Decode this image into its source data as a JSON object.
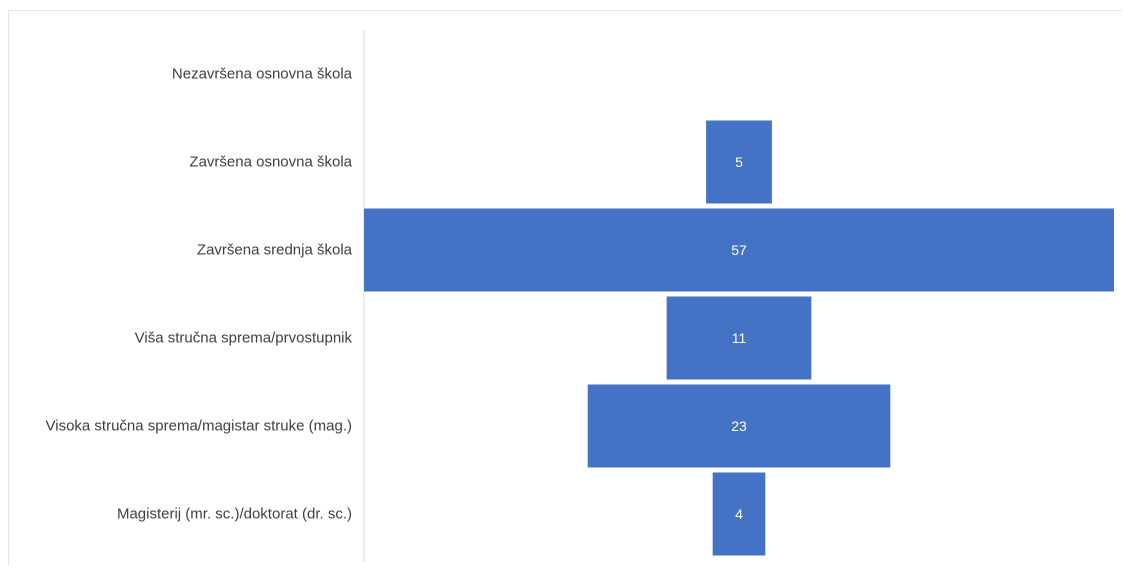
{
  "chart_data": {
    "type": "bar",
    "orientation": "horizontal",
    "layout": "funnel",
    "categories": [
      "Nezavršena osnovna škola",
      "Završena osnovna škola",
      "Završena srednja škola",
      "Viša stručna sprema/prvostupnik",
      "Visoka stručna sprema/magistar struke (mag.)",
      "Magisterij (mr. sc.)/doktorat (dr. sc.)"
    ],
    "values": [
      0,
      5,
      57,
      11,
      23,
      4
    ],
    "data_labels": [
      "",
      "5",
      "57",
      "11",
      "23",
      "4"
    ],
    "title": "",
    "xlabel": "",
    "ylabel": "",
    "grid": false,
    "legend": "none",
    "bar_color": "#4472C4"
  }
}
